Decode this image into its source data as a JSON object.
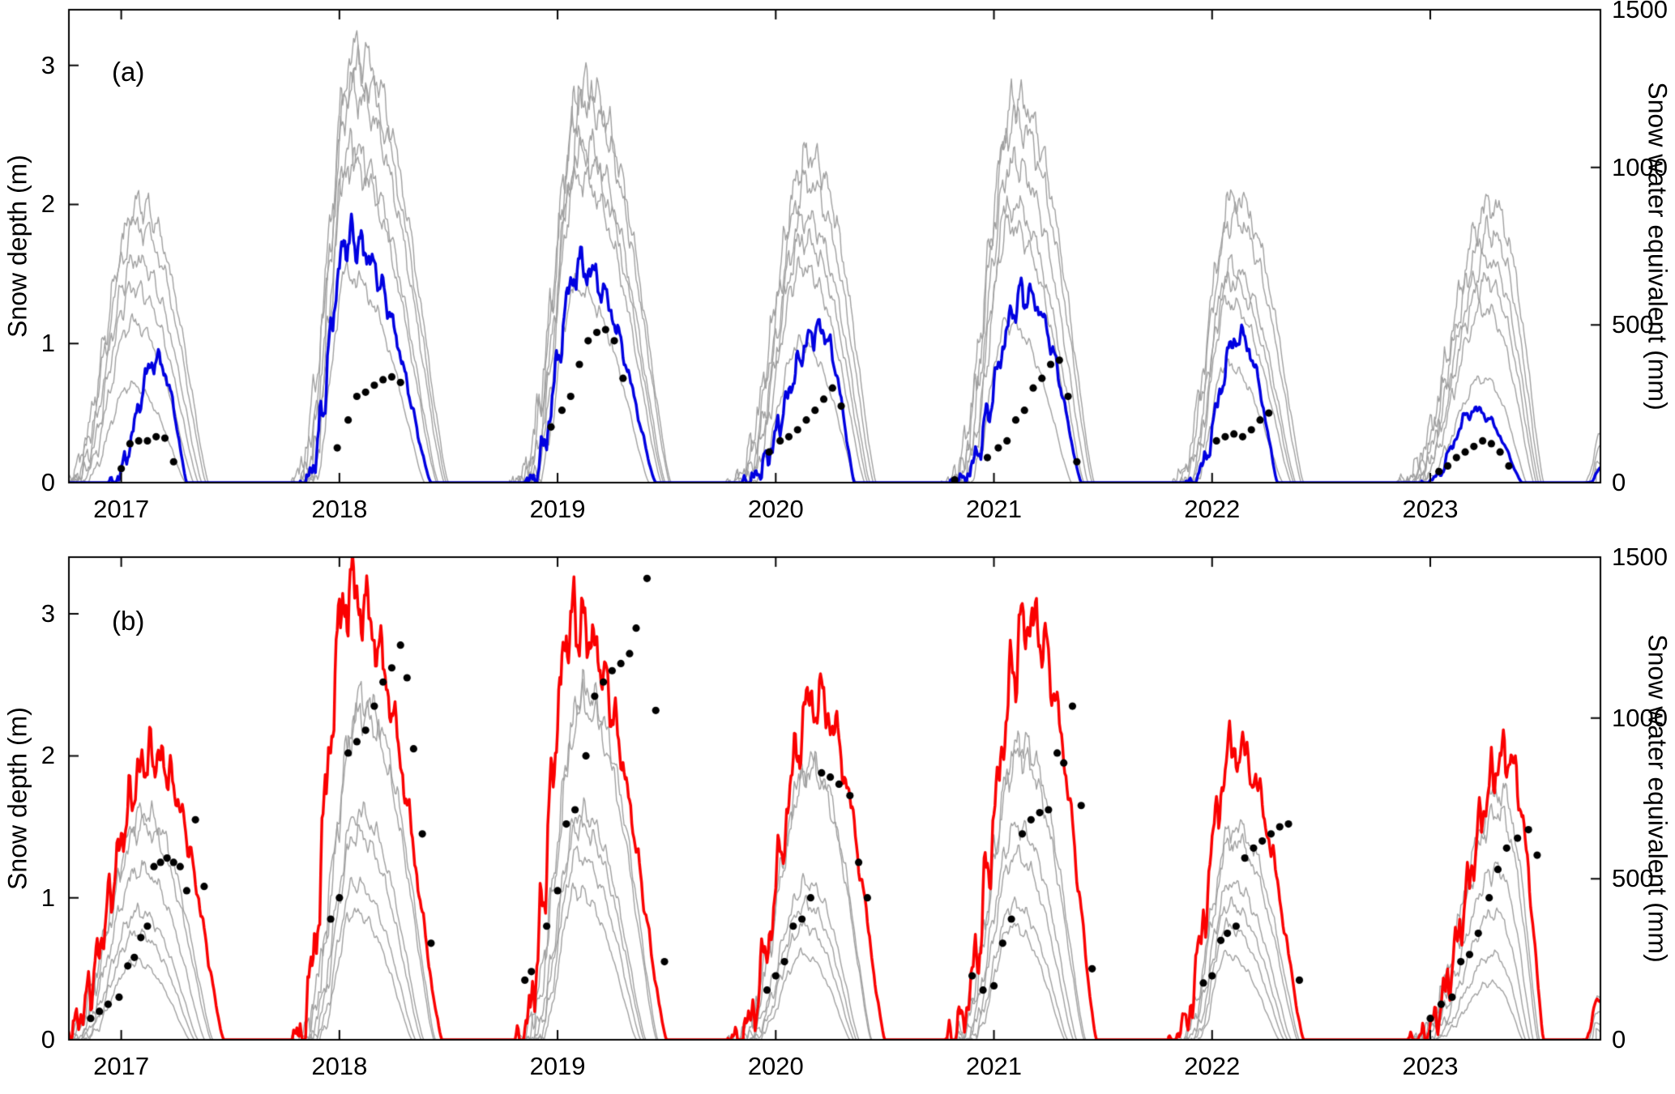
{
  "figure": {
    "background": "#ffffff",
    "axis_color": "#000000"
  },
  "chart_data": [
    {
      "type": "line",
      "panel_label": "(a)",
      "ylabel_left": "Snow depth (m)",
      "ylabel_right": "Snow water equivalent (mm)",
      "xlim": [
        2016.76,
        2023.78
      ],
      "ylim_left": [
        0,
        3.4
      ],
      "ylim_right": [
        0,
        1500
      ],
      "xticks": [
        2017,
        2018,
        2019,
        2020,
        2021,
        2022,
        2023
      ],
      "yticks_left": [
        0,
        1,
        2,
        3
      ],
      "yticks_right": [
        0,
        500,
        1000,
        1500
      ],
      "colors": {
        "highlight": "#0000e0",
        "ensemble": "#a0a0a0",
        "observations": "#000000"
      },
      "seasons": [
        {
          "year": 2017,
          "ensemble": {
            "onset": 2016.7,
            "peak_time": 2017.08,
            "end": 2017.4,
            "peaks": [
              2.0,
              1.85,
              1.6,
              1.4,
              1.15,
              0.7
            ]
          },
          "highlight": {
            "onset": 2016.93,
            "peak_time": 2017.16,
            "end": 2017.3,
            "peak": 0.88
          }
        },
        {
          "year": 2018,
          "ensemble": {
            "onset": 2017.76,
            "peak_time": 2018.07,
            "end": 2018.5,
            "peaks": [
              3.1,
              2.95,
              2.8,
              2.4,
              2.3,
              1.5
            ]
          },
          "highlight": {
            "onset": 2017.82,
            "peak_time": 2018.04,
            "end": 2018.42,
            "peak": 1.75
          }
        },
        {
          "year": 2019,
          "ensemble": {
            "onset": 2018.78,
            "peak_time": 2019.12,
            "end": 2019.52,
            "peaks": [
              2.85,
              2.75,
              2.45,
              2.35,
              2.2,
              1.4
            ]
          },
          "highlight": {
            "onset": 2018.84,
            "peak_time": 2019.1,
            "end": 2019.45,
            "peak": 1.55
          }
        },
        {
          "year": 2020,
          "ensemble": {
            "onset": 2019.76,
            "peak_time": 2020.15,
            "end": 2020.46,
            "peaks": [
              2.35,
              2.15,
              1.9,
              1.75,
              1.55,
              1.0
            ]
          },
          "highlight": {
            "onset": 2019.82,
            "peak_time": 2020.2,
            "end": 2020.36,
            "peak": 1.1
          }
        },
        {
          "year": 2021,
          "ensemble": {
            "onset": 2020.76,
            "peak_time": 2021.1,
            "end": 2021.46,
            "peaks": [
              2.75,
              2.6,
              2.3,
              2.0,
              1.85,
              1.15
            ]
          },
          "highlight": {
            "onset": 2020.8,
            "peak_time": 2021.14,
            "end": 2021.4,
            "peak": 1.35
          }
        },
        {
          "year": 2022,
          "ensemble": {
            "onset": 2021.8,
            "peak_time": 2022.1,
            "end": 2022.42,
            "peaks": [
              2.05,
              1.9,
              1.55,
              1.45,
              1.3,
              0.85
            ]
          },
          "highlight": {
            "onset": 2021.88,
            "peak_time": 2022.12,
            "end": 2022.3,
            "peak": 1.05
          }
        },
        {
          "year": 2023,
          "ensemble": {
            "onset": 2022.82,
            "peak_time": 2023.28,
            "end": 2023.52,
            "peaks": [
              2.0,
              1.8,
              1.6,
              1.45,
              1.25,
              0.75
            ]
          },
          "highlight": {
            "onset": 2022.96,
            "peak_time": 2023.2,
            "end": 2023.42,
            "peak": 0.52
          }
        },
        {
          "year": 2024,
          "ensemble": {
            "onset": 2023.7,
            "peak_time": 2023.78,
            "end": 2023.85,
            "peaks": [
              0.35,
              0.25,
              0.15,
              0.1,
              0.06,
              0.04
            ]
          },
          "highlight": {
            "onset": 2023.72,
            "peak_time": 2023.78,
            "end": 2023.84,
            "peak": 0.1
          }
        }
      ],
      "observations": [
        [
          2017.0,
          0.1
        ],
        [
          2017.04,
          0.28
        ],
        [
          2017.08,
          0.3
        ],
        [
          2017.12,
          0.3
        ],
        [
          2017.16,
          0.33
        ],
        [
          2017.2,
          0.32
        ],
        [
          2017.24,
          0.15
        ],
        [
          2017.99,
          0.25
        ],
        [
          2018.04,
          0.45
        ],
        [
          2018.08,
          0.62
        ],
        [
          2018.12,
          0.65
        ],
        [
          2018.16,
          0.7
        ],
        [
          2018.2,
          0.74
        ],
        [
          2018.24,
          0.76
        ],
        [
          2018.28,
          0.72
        ],
        [
          2018.97,
          0.4
        ],
        [
          2019.02,
          0.52
        ],
        [
          2019.06,
          0.62
        ],
        [
          2019.1,
          0.85
        ],
        [
          2019.14,
          1.02
        ],
        [
          2019.18,
          1.08
        ],
        [
          2019.22,
          1.1
        ],
        [
          2019.26,
          1.02
        ],
        [
          2019.3,
          0.75
        ],
        [
          2019.97,
          0.22
        ],
        [
          2020.02,
          0.3
        ],
        [
          2020.06,
          0.33
        ],
        [
          2020.1,
          0.38
        ],
        [
          2020.14,
          0.45
        ],
        [
          2020.18,
          0.52
        ],
        [
          2020.22,
          0.6
        ],
        [
          2020.26,
          0.68
        ],
        [
          2020.3,
          0.55
        ],
        [
          2020.82,
          0.02
        ],
        [
          2020.97,
          0.18
        ],
        [
          2021.02,
          0.25
        ],
        [
          2021.06,
          0.3
        ],
        [
          2021.1,
          0.45
        ],
        [
          2021.14,
          0.52
        ],
        [
          2021.18,
          0.68
        ],
        [
          2021.22,
          0.75
        ],
        [
          2021.26,
          0.85
        ],
        [
          2021.3,
          0.88
        ],
        [
          2021.34,
          0.62
        ],
        [
          2021.38,
          0.15
        ],
        [
          2022.02,
          0.3
        ],
        [
          2022.06,
          0.33
        ],
        [
          2022.1,
          0.35
        ],
        [
          2022.14,
          0.33
        ],
        [
          2022.18,
          0.38
        ],
        [
          2022.22,
          0.45
        ],
        [
          2022.26,
          0.5
        ],
        [
          2023.04,
          0.08
        ],
        [
          2023.08,
          0.12
        ],
        [
          2023.12,
          0.18
        ],
        [
          2023.16,
          0.22
        ],
        [
          2023.2,
          0.26
        ],
        [
          2023.24,
          0.3
        ],
        [
          2023.28,
          0.28
        ],
        [
          2023.32,
          0.22
        ],
        [
          2023.36,
          0.12
        ]
      ]
    },
    {
      "type": "line",
      "panel_label": "(b)",
      "ylabel_left": "Snow depth (m)",
      "ylabel_right": "Snow water equivalent (mm)",
      "xlim": [
        2016.76,
        2023.78
      ],
      "ylim_left": [
        0,
        3.4
      ],
      "ylim_right": [
        0,
        1500
      ],
      "xticks": [
        2017,
        2018,
        2019,
        2020,
        2021,
        2022,
        2023
      ],
      "yticks_left": [
        0,
        1,
        2,
        3
      ],
      "yticks_right": [
        0,
        500,
        1000,
        1500
      ],
      "colors": {
        "highlight": "#fa0000",
        "ensemble": "#a0a0a0",
        "observations": "#000000"
      },
      "seasons": [
        {
          "year": 2017,
          "ensemble": {
            "onset": 2016.7,
            "peak_time": 2017.1,
            "end": 2017.42,
            "peaks": [
              1.6,
              1.5,
              1.2,
              0.9,
              0.75,
              0.55
            ]
          },
          "highlight": {
            "onset": 2016.68,
            "peak_time": 2017.14,
            "end": 2017.47,
            "peak": 2.0
          }
        },
        {
          "year": 2018,
          "ensemble": {
            "onset": 2017.78,
            "peak_time": 2018.1,
            "end": 2018.44,
            "peaks": [
              2.4,
              2.3,
              1.6,
              1.45,
              1.1,
              0.9
            ]
          },
          "highlight": {
            "onset": 2017.78,
            "peak_time": 2018.04,
            "end": 2018.47,
            "peak": 3.15
          }
        },
        {
          "year": 2019,
          "ensemble": {
            "onset": 2018.8,
            "peak_time": 2019.12,
            "end": 2019.46,
            "peaks": [
              2.45,
              2.35,
              1.6,
              1.5,
              1.3,
              1.05
            ]
          },
          "highlight": {
            "onset": 2018.8,
            "peak_time": 2019.07,
            "end": 2019.5,
            "peak": 2.95
          }
        },
        {
          "year": 2020,
          "ensemble": {
            "onset": 2019.78,
            "peak_time": 2020.16,
            "end": 2020.44,
            "peaks": [
              1.95,
              1.9,
              1.1,
              0.95,
              0.8,
              0.6
            ]
          },
          "highlight": {
            "onset": 2019.78,
            "peak_time": 2020.18,
            "end": 2020.5,
            "peak": 2.4
          }
        },
        {
          "year": 2021,
          "ensemble": {
            "onset": 2020.78,
            "peak_time": 2021.12,
            "end": 2021.42,
            "peaks": [
              2.1,
              2.0,
              1.5,
              1.3,
              0.95,
              0.8
            ]
          },
          "highlight": {
            "onset": 2020.76,
            "peak_time": 2021.16,
            "end": 2021.47,
            "peak": 2.95
          }
        },
        {
          "year": 2022,
          "ensemble": {
            "onset": 2021.82,
            "peak_time": 2022.1,
            "end": 2022.4,
            "peaks": [
              1.5,
              1.4,
              1.1,
              0.95,
              0.8,
              0.6
            ]
          },
          "highlight": {
            "onset": 2021.8,
            "peak_time": 2022.1,
            "end": 2022.42,
            "peak": 2.05
          }
        },
        {
          "year": 2023,
          "ensemble": {
            "onset": 2022.88,
            "peak_time": 2023.32,
            "end": 2023.5,
            "peaks": [
              1.75,
              1.6,
              1.2,
              0.9,
              0.6,
              0.4
            ]
          },
          "highlight": {
            "onset": 2022.9,
            "peak_time": 2023.35,
            "end": 2023.52,
            "peak": 2.0
          }
        },
        {
          "year": 2024,
          "ensemble": {
            "onset": 2023.7,
            "peak_time": 2023.77,
            "end": 2023.85,
            "peaks": [
              0.3,
              0.2,
              0.12,
              0.08,
              0.05,
              0.03
            ]
          },
          "highlight": {
            "onset": 2023.7,
            "peak_time": 2023.77,
            "end": 2023.85,
            "peak": 0.28
          }
        }
      ],
      "observations": [
        [
          2016.86,
          0.15
        ],
        [
          2016.9,
          0.2
        ],
        [
          2016.94,
          0.25
        ],
        [
          2016.99,
          0.3
        ],
        [
          2017.03,
          0.52
        ],
        [
          2017.06,
          0.58
        ],
        [
          2017.09,
          0.72
        ],
        [
          2017.12,
          0.8
        ],
        [
          2017.15,
          1.22
        ],
        [
          2017.18,
          1.25
        ],
        [
          2017.21,
          1.28
        ],
        [
          2017.24,
          1.25
        ],
        [
          2017.27,
          1.22
        ],
        [
          2017.3,
          1.05
        ],
        [
          2017.34,
          1.55
        ],
        [
          2017.38,
          1.08
        ],
        [
          2017.96,
          0.85
        ],
        [
          2018.0,
          1.0
        ],
        [
          2018.04,
          2.02
        ],
        [
          2018.08,
          2.1
        ],
        [
          2018.12,
          2.18
        ],
        [
          2018.16,
          2.35
        ],
        [
          2018.2,
          2.52
        ],
        [
          2018.24,
          2.62
        ],
        [
          2018.28,
          2.78
        ],
        [
          2018.31,
          2.55
        ],
        [
          2018.34,
          2.05
        ],
        [
          2018.38,
          1.45
        ],
        [
          2018.42,
          0.68
        ],
        [
          2018.85,
          0.42
        ],
        [
          2018.88,
          0.48
        ],
        [
          2018.95,
          0.8
        ],
        [
          2019.0,
          1.05
        ],
        [
          2019.04,
          1.52
        ],
        [
          2019.08,
          1.62
        ],
        [
          2019.13,
          2.0
        ],
        [
          2019.17,
          2.42
        ],
        [
          2019.21,
          2.52
        ],
        [
          2019.25,
          2.6
        ],
        [
          2019.29,
          2.65
        ],
        [
          2019.33,
          2.72
        ],
        [
          2019.36,
          2.9
        ],
        [
          2019.41,
          3.25
        ],
        [
          2019.45,
          2.32
        ],
        [
          2019.49,
          0.55
        ],
        [
          2019.96,
          0.35
        ],
        [
          2020.0,
          0.45
        ],
        [
          2020.04,
          0.55
        ],
        [
          2020.08,
          0.8
        ],
        [
          2020.12,
          0.85
        ],
        [
          2020.16,
          1.0
        ],
        [
          2020.21,
          1.88
        ],
        [
          2020.25,
          1.85
        ],
        [
          2020.29,
          1.8
        ],
        [
          2020.34,
          1.72
        ],
        [
          2020.38,
          1.25
        ],
        [
          2020.42,
          1.0
        ],
        [
          2020.9,
          0.45
        ],
        [
          2020.95,
          0.35
        ],
        [
          2021.0,
          0.38
        ],
        [
          2021.04,
          0.68
        ],
        [
          2021.08,
          0.85
        ],
        [
          2021.13,
          1.45
        ],
        [
          2021.17,
          1.55
        ],
        [
          2021.21,
          1.6
        ],
        [
          2021.25,
          1.62
        ],
        [
          2021.29,
          2.02
        ],
        [
          2021.32,
          1.95
        ],
        [
          2021.36,
          2.35
        ],
        [
          2021.4,
          1.65
        ],
        [
          2021.45,
          0.5
        ],
        [
          2021.96,
          0.4
        ],
        [
          2022.0,
          0.45
        ],
        [
          2022.04,
          0.7
        ],
        [
          2022.07,
          0.75
        ],
        [
          2022.11,
          0.8
        ],
        [
          2022.15,
          1.28
        ],
        [
          2022.19,
          1.35
        ],
        [
          2022.23,
          1.4
        ],
        [
          2022.27,
          1.45
        ],
        [
          2022.31,
          1.5
        ],
        [
          2022.35,
          1.52
        ],
        [
          2022.4,
          0.42
        ],
        [
          2023.0,
          0.15
        ],
        [
          2023.05,
          0.25
        ],
        [
          2023.1,
          0.3
        ],
        [
          2023.14,
          0.55
        ],
        [
          2023.18,
          0.6
        ],
        [
          2023.22,
          0.75
        ],
        [
          2023.27,
          1.0
        ],
        [
          2023.31,
          1.2
        ],
        [
          2023.35,
          1.35
        ],
        [
          2023.4,
          1.42
        ],
        [
          2023.45,
          1.48
        ],
        [
          2023.49,
          1.3
        ]
      ]
    }
  ]
}
